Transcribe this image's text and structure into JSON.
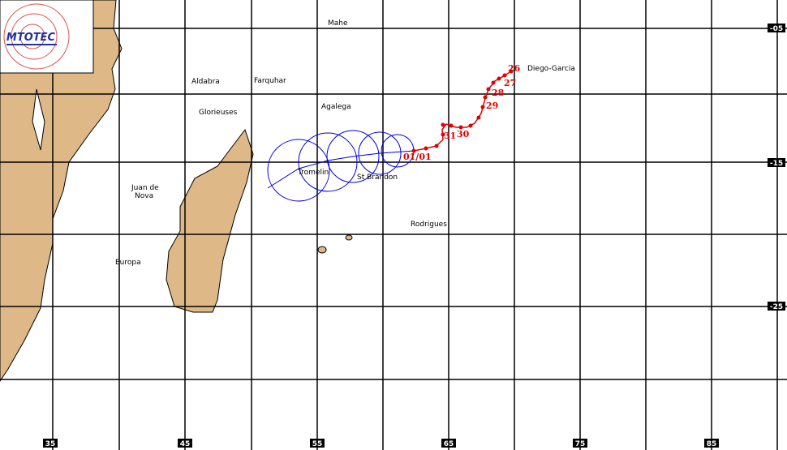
{
  "logo": "MTOTEC",
  "longitudes": [
    "35",
    "45",
    "55",
    "65",
    "75",
    "85"
  ],
  "latitudes": [
    "-05",
    "-15",
    "-25"
  ],
  "places": [
    "Mahe",
    "Aldabra",
    "Farquhar",
    "Agalega",
    "Glorieuses",
    "Diego-Garcia",
    "Juan de",
    "Nova",
    "Tromelin",
    "St Brandon",
    "Rodrigues",
    "Europa"
  ],
  "track_days": [
    "26",
    "27",
    "28",
    "29",
    "30",
    "31",
    "01/01"
  ]
}
